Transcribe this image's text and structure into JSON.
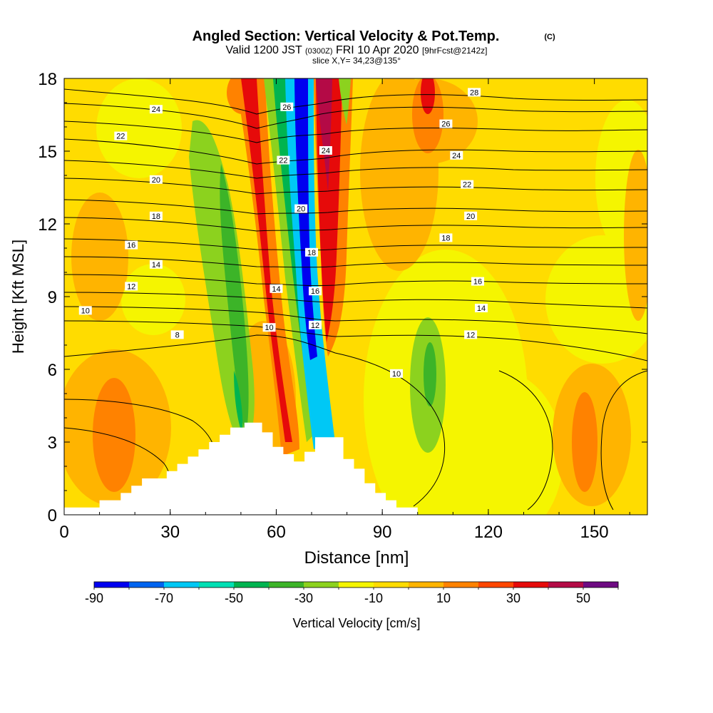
{
  "header": {
    "title_main": "Angled Section: Vertical Velocity & Pot.Temp.",
    "title_suffix": "(C)",
    "valid_prefix": "Valid 1200 JST",
    "valid_utc": "(0300Z)",
    "valid_date": "FRI 10 Apr 2020",
    "valid_fcst": "[9hrFcst@2142z]",
    "slice": "slice X,Y= 34,23@135°"
  },
  "chart_data": {
    "type": "heatmap",
    "xlabel": "Distance [nm]",
    "ylabel": "Height [Kft MSL]",
    "xlim": [
      0,
      165
    ],
    "ylim": [
      0,
      18
    ],
    "xticks": [
      0,
      30,
      60,
      90,
      120,
      150
    ],
    "yticks": [
      0,
      3,
      6,
      9,
      12,
      15,
      18
    ],
    "colorbar": {
      "label": "Vertical Velocity [cm/s]",
      "min": -90,
      "max": 60,
      "step": 10,
      "tick_values": [
        -90,
        -70,
        -50,
        -30,
        -10,
        10,
        30,
        50
      ],
      "colors": [
        "#0000f0",
        "#0064f0",
        "#00c8f5",
        "#00e0b4",
        "#00b450",
        "#3cb428",
        "#8cd21e",
        "#f5f500",
        "#ffdc00",
        "#ffb400",
        "#ff8200",
        "#ff4600",
        "#e60a0a",
        "#b40a46",
        "#6e0a82"
      ]
    },
    "terrain": [
      [
        0,
        0.3
      ],
      [
        10,
        0.3
      ],
      [
        10,
        0.6
      ],
      [
        16,
        0.6
      ],
      [
        16,
        0.9
      ],
      [
        19,
        0.9
      ],
      [
        19,
        1.2
      ],
      [
        22,
        1.2
      ],
      [
        22,
        1.5
      ],
      [
        26,
        1.5
      ],
      [
        26,
        1.5
      ],
      [
        29,
        1.5
      ],
      [
        29,
        1.8
      ],
      [
        32,
        1.8
      ],
      [
        32,
        2.1
      ],
      [
        35,
        2.1
      ],
      [
        35,
        2.4
      ],
      [
        38,
        2.4
      ],
      [
        38,
        2.7
      ],
      [
        41,
        2.7
      ],
      [
        41,
        3.0
      ],
      [
        44,
        3.0
      ],
      [
        44,
        3.3
      ],
      [
        47,
        3.3
      ],
      [
        47,
        3.6
      ],
      [
        51,
        3.6
      ],
      [
        51,
        3.8
      ],
      [
        56,
        3.8
      ],
      [
        56,
        3.4
      ],
      [
        59,
        3.4
      ],
      [
        59,
        2.8
      ],
      [
        62,
        2.8
      ],
      [
        62,
        2.5
      ],
      [
        65,
        2.5
      ],
      [
        65,
        2.2
      ],
      [
        68,
        2.2
      ],
      [
        68,
        2.6
      ],
      [
        71,
        2.6
      ],
      [
        71,
        3.2
      ],
      [
        75,
        3.2
      ],
      [
        75,
        3.2
      ],
      [
        79,
        3.2
      ],
      [
        79,
        2.3
      ],
      [
        82,
        2.3
      ],
      [
        82,
        1.9
      ],
      [
        85,
        1.9
      ],
      [
        85,
        1.3
      ],
      [
        88,
        1.3
      ],
      [
        88,
        0.9
      ],
      [
        91,
        0.9
      ],
      [
        91,
        0.6
      ],
      [
        94,
        0.6
      ],
      [
        94,
        0.3
      ],
      [
        100,
        0.3
      ],
      [
        100,
        0
      ],
      [
        165,
        0
      ]
    ],
    "isentropes": [
      {
        "value": 8,
        "label_x": 32,
        "label_y": 7.4
      },
      {
        "value": 10,
        "label_x": 6,
        "label_y": 8.4
      },
      {
        "value": 10,
        "label_x": 58,
        "label_y": 7.7
      },
      {
        "value": 10,
        "label_x": 94,
        "label_y": 5.8
      },
      {
        "value": 12,
        "label_x": 19,
        "label_y": 9.4
      },
      {
        "value": 12,
        "label_x": 71,
        "label_y": 7.8
      },
      {
        "value": 12,
        "label_x": 115,
        "label_y": 7.4
      },
      {
        "value": 14,
        "label_x": 26,
        "label_y": 10.3
      },
      {
        "value": 14,
        "label_x": 60,
        "label_y": 9.3
      },
      {
        "value": 14,
        "label_x": 118,
        "label_y": 8.5
      },
      {
        "value": 16,
        "label_x": 19,
        "label_y": 11.1
      },
      {
        "value": 16,
        "label_x": 71,
        "label_y": 9.2
      },
      {
        "value": 16,
        "label_x": 117,
        "label_y": 9.6
      },
      {
        "value": 18,
        "label_x": 26,
        "label_y": 12.3
      },
      {
        "value": 18,
        "label_x": 70,
        "label_y": 10.8
      },
      {
        "value": 18,
        "label_x": 108,
        "label_y": 11.4
      },
      {
        "value": 20,
        "label_x": 26,
        "label_y": 13.8
      },
      {
        "value": 20,
        "label_x": 67,
        "label_y": 12.6
      },
      {
        "value": 20,
        "label_x": 115,
        "label_y": 12.3
      },
      {
        "value": 22,
        "label_x": 16,
        "label_y": 15.6
      },
      {
        "value": 22,
        "label_x": 62,
        "label_y": 14.6
      },
      {
        "value": 22,
        "label_x": 114,
        "label_y": 13.6
      },
      {
        "value": 24,
        "label_x": 26,
        "label_y": 16.7
      },
      {
        "value": 24,
        "label_x": 74,
        "label_y": 15.0
      },
      {
        "value": 24,
        "label_x": 111,
        "label_y": 14.8
      },
      {
        "value": 26,
        "label_x": 63,
        "label_y": 16.8
      },
      {
        "value": 26,
        "label_x": 108,
        "label_y": 16.1
      },
      {
        "value": 28,
        "label_x": 116,
        "label_y": 17.4
      }
    ]
  }
}
